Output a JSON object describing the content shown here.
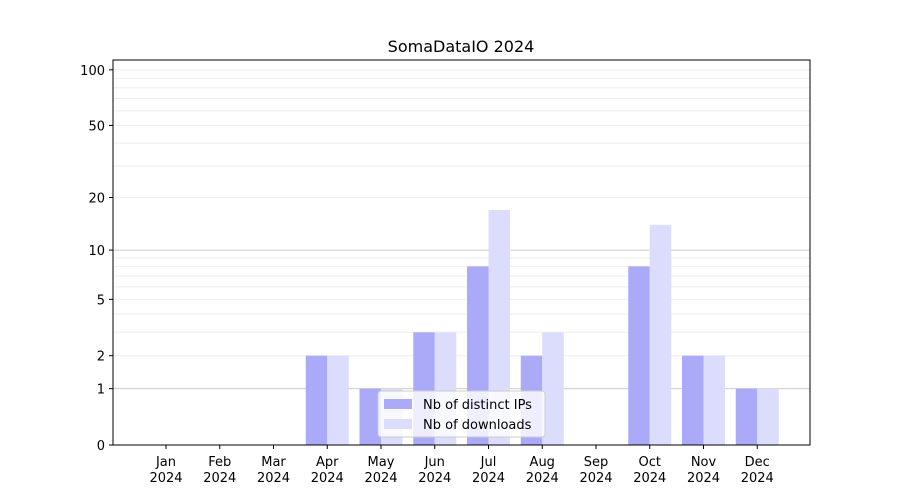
{
  "chart_data": {
    "type": "bar",
    "title": "SomaDataIO 2024",
    "xlabel": "",
    "ylabel": "",
    "yscale": "symlog (log10(1+y))",
    "ylim": [
      0,
      113
    ],
    "yticks": [
      0,
      1,
      2,
      5,
      10,
      20,
      50,
      100
    ],
    "grid": true,
    "legend_position": "bottom-center",
    "categories": [
      "Jan\n2024",
      "Feb\n2024",
      "Mar\n2024",
      "Apr\n2024",
      "May\n2024",
      "Jun\n2024",
      "Jul\n2024",
      "Aug\n2024",
      "Sep\n2024",
      "Oct\n2024",
      "Nov\n2024",
      "Dec\n2024"
    ],
    "series": [
      {
        "name": "Nb of distinct IPs",
        "color": "#aaaaf8",
        "values": [
          0,
          0,
          0,
          2,
          1,
          3,
          8,
          2,
          0,
          8,
          2,
          1
        ]
      },
      {
        "name": "Nb of downloads",
        "color": "#dcdcfc",
        "values": [
          0,
          0,
          0,
          2,
          1,
          3,
          17,
          3,
          0,
          14,
          2,
          1
        ]
      }
    ]
  }
}
